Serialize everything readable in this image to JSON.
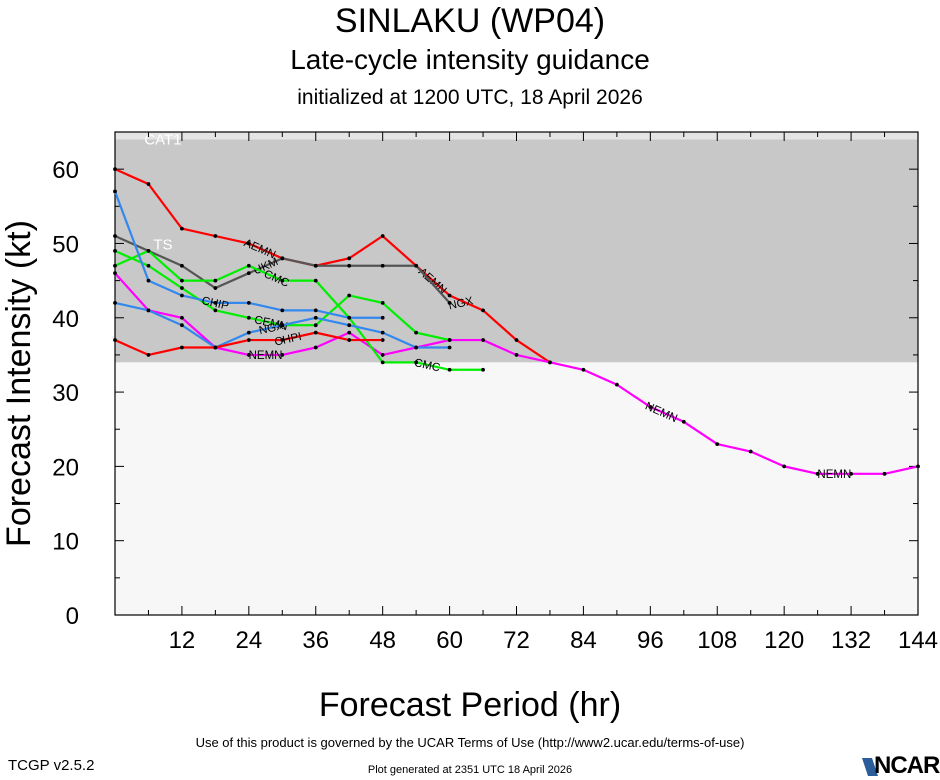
{
  "header": {
    "title": "SINLAKU (WP04)",
    "subtitle": "Late-cycle intensity guidance",
    "init": "initialized at 1200 UTC, 18 April 2026"
  },
  "footer": {
    "terms": "Use of this product is governed by the UCAR Terms of Use (http://www2.ucar.edu/terms-of-use)",
    "version": "TCGP v2.5.2",
    "generated": "Plot generated at 2351 UTC   18 April 2026",
    "logo": "NCAR"
  },
  "chart_data": {
    "type": "line",
    "xlabel": "Forecast Period (hr)",
    "ylabel": "Forecast Intensity (kt)",
    "xlim": [
      0,
      144
    ],
    "ylim": [
      0,
      65
    ],
    "xticks": [
      12,
      24,
      36,
      48,
      60,
      72,
      84,
      96,
      108,
      120,
      132,
      144
    ],
    "yticks": [
      0,
      10,
      20,
      30,
      40,
      50,
      60
    ],
    "bands": [
      {
        "label": "TS",
        "from": 34,
        "to": 64,
        "color": "#c8c8c8"
      },
      {
        "label": "CAT1",
        "from": 64,
        "to": 65,
        "color": "#e4e4e4"
      }
    ],
    "below_band_color": "#f7f7f7",
    "series": [
      {
        "name": "AEMN",
        "color": "#ff0000",
        "x": [
          0,
          6,
          12,
          18,
          24,
          30,
          36,
          42,
          48,
          54,
          60,
          66,
          72,
          78
        ],
        "y": [
          60,
          58,
          52,
          51,
          50,
          48,
          47,
          48,
          51,
          47,
          43,
          41,
          37,
          34
        ],
        "labels_at": [
          26,
          57
        ]
      },
      {
        "name": "NEMN",
        "color": "#ff00ff",
        "x": [
          0,
          6,
          12,
          18,
          24,
          30,
          36,
          42,
          48,
          54,
          60,
          66,
          72,
          78,
          84,
          90,
          96,
          102,
          108,
          114,
          120,
          126,
          132,
          138,
          144
        ],
        "y": [
          46,
          41,
          40,
          36,
          35,
          35,
          36,
          38,
          35,
          36,
          37,
          37,
          35,
          34,
          33,
          31,
          28,
          26,
          23,
          22,
          20,
          19,
          19,
          19,
          20
        ],
        "labels_at": [
          27,
          98,
          129
        ]
      },
      {
        "name": "UKM",
        "color": "#555555",
        "x": [
          0,
          6,
          12,
          18,
          24,
          30,
          36,
          42,
          48,
          54,
          60
        ],
        "y": [
          51,
          49,
          47,
          44,
          46,
          48,
          47,
          47,
          47,
          47,
          42
        ],
        "labels_at": [
          27
        ]
      },
      {
        "name": "CMC",
        "color": "#00ee00",
        "x": [
          0,
          6,
          12,
          18,
          24,
          30,
          36,
          42,
          48,
          54,
          60,
          66
        ],
        "y": [
          47,
          49,
          45,
          45,
          47,
          45,
          45,
          40,
          34,
          34,
          33,
          33
        ],
        "labels_at": [
          29,
          56
        ]
      },
      {
        "name": "CEMN",
        "color": "#00ee00",
        "x": [
          0,
          6,
          12,
          18,
          24,
          30,
          36,
          42,
          48,
          54,
          60
        ],
        "y": [
          49,
          47,
          44,
          41,
          40,
          39,
          39,
          43,
          42,
          38,
          37
        ],
        "labels_at": [
          28
        ]
      },
      {
        "name": "CHIP",
        "color": "#3388ee",
        "x": [
          0,
          6,
          12,
          18,
          24,
          30,
          36,
          42,
          48
        ],
        "y": [
          57,
          45,
          43,
          42,
          42,
          41,
          41,
          40,
          40
        ],
        "labels_at": [
          18
        ]
      },
      {
        "name": "NGX",
        "color": "#3388ee",
        "x": [
          0,
          6,
          12,
          18,
          24,
          30,
          36,
          42,
          48,
          54,
          60
        ],
        "y": [
          42,
          41,
          39,
          36,
          38,
          39,
          40,
          39,
          38,
          36,
          36
        ],
        "labels_at": [
          28,
          62
        ]
      },
      {
        "name": "CHPI",
        "color": "#ff0000",
        "x": [
          0,
          6,
          12,
          18,
          24,
          30,
          36,
          42,
          48
        ],
        "y": [
          37,
          35,
          36,
          36,
          37,
          37,
          38,
          37,
          37
        ],
        "labels_at": [
          31
        ]
      }
    ]
  }
}
